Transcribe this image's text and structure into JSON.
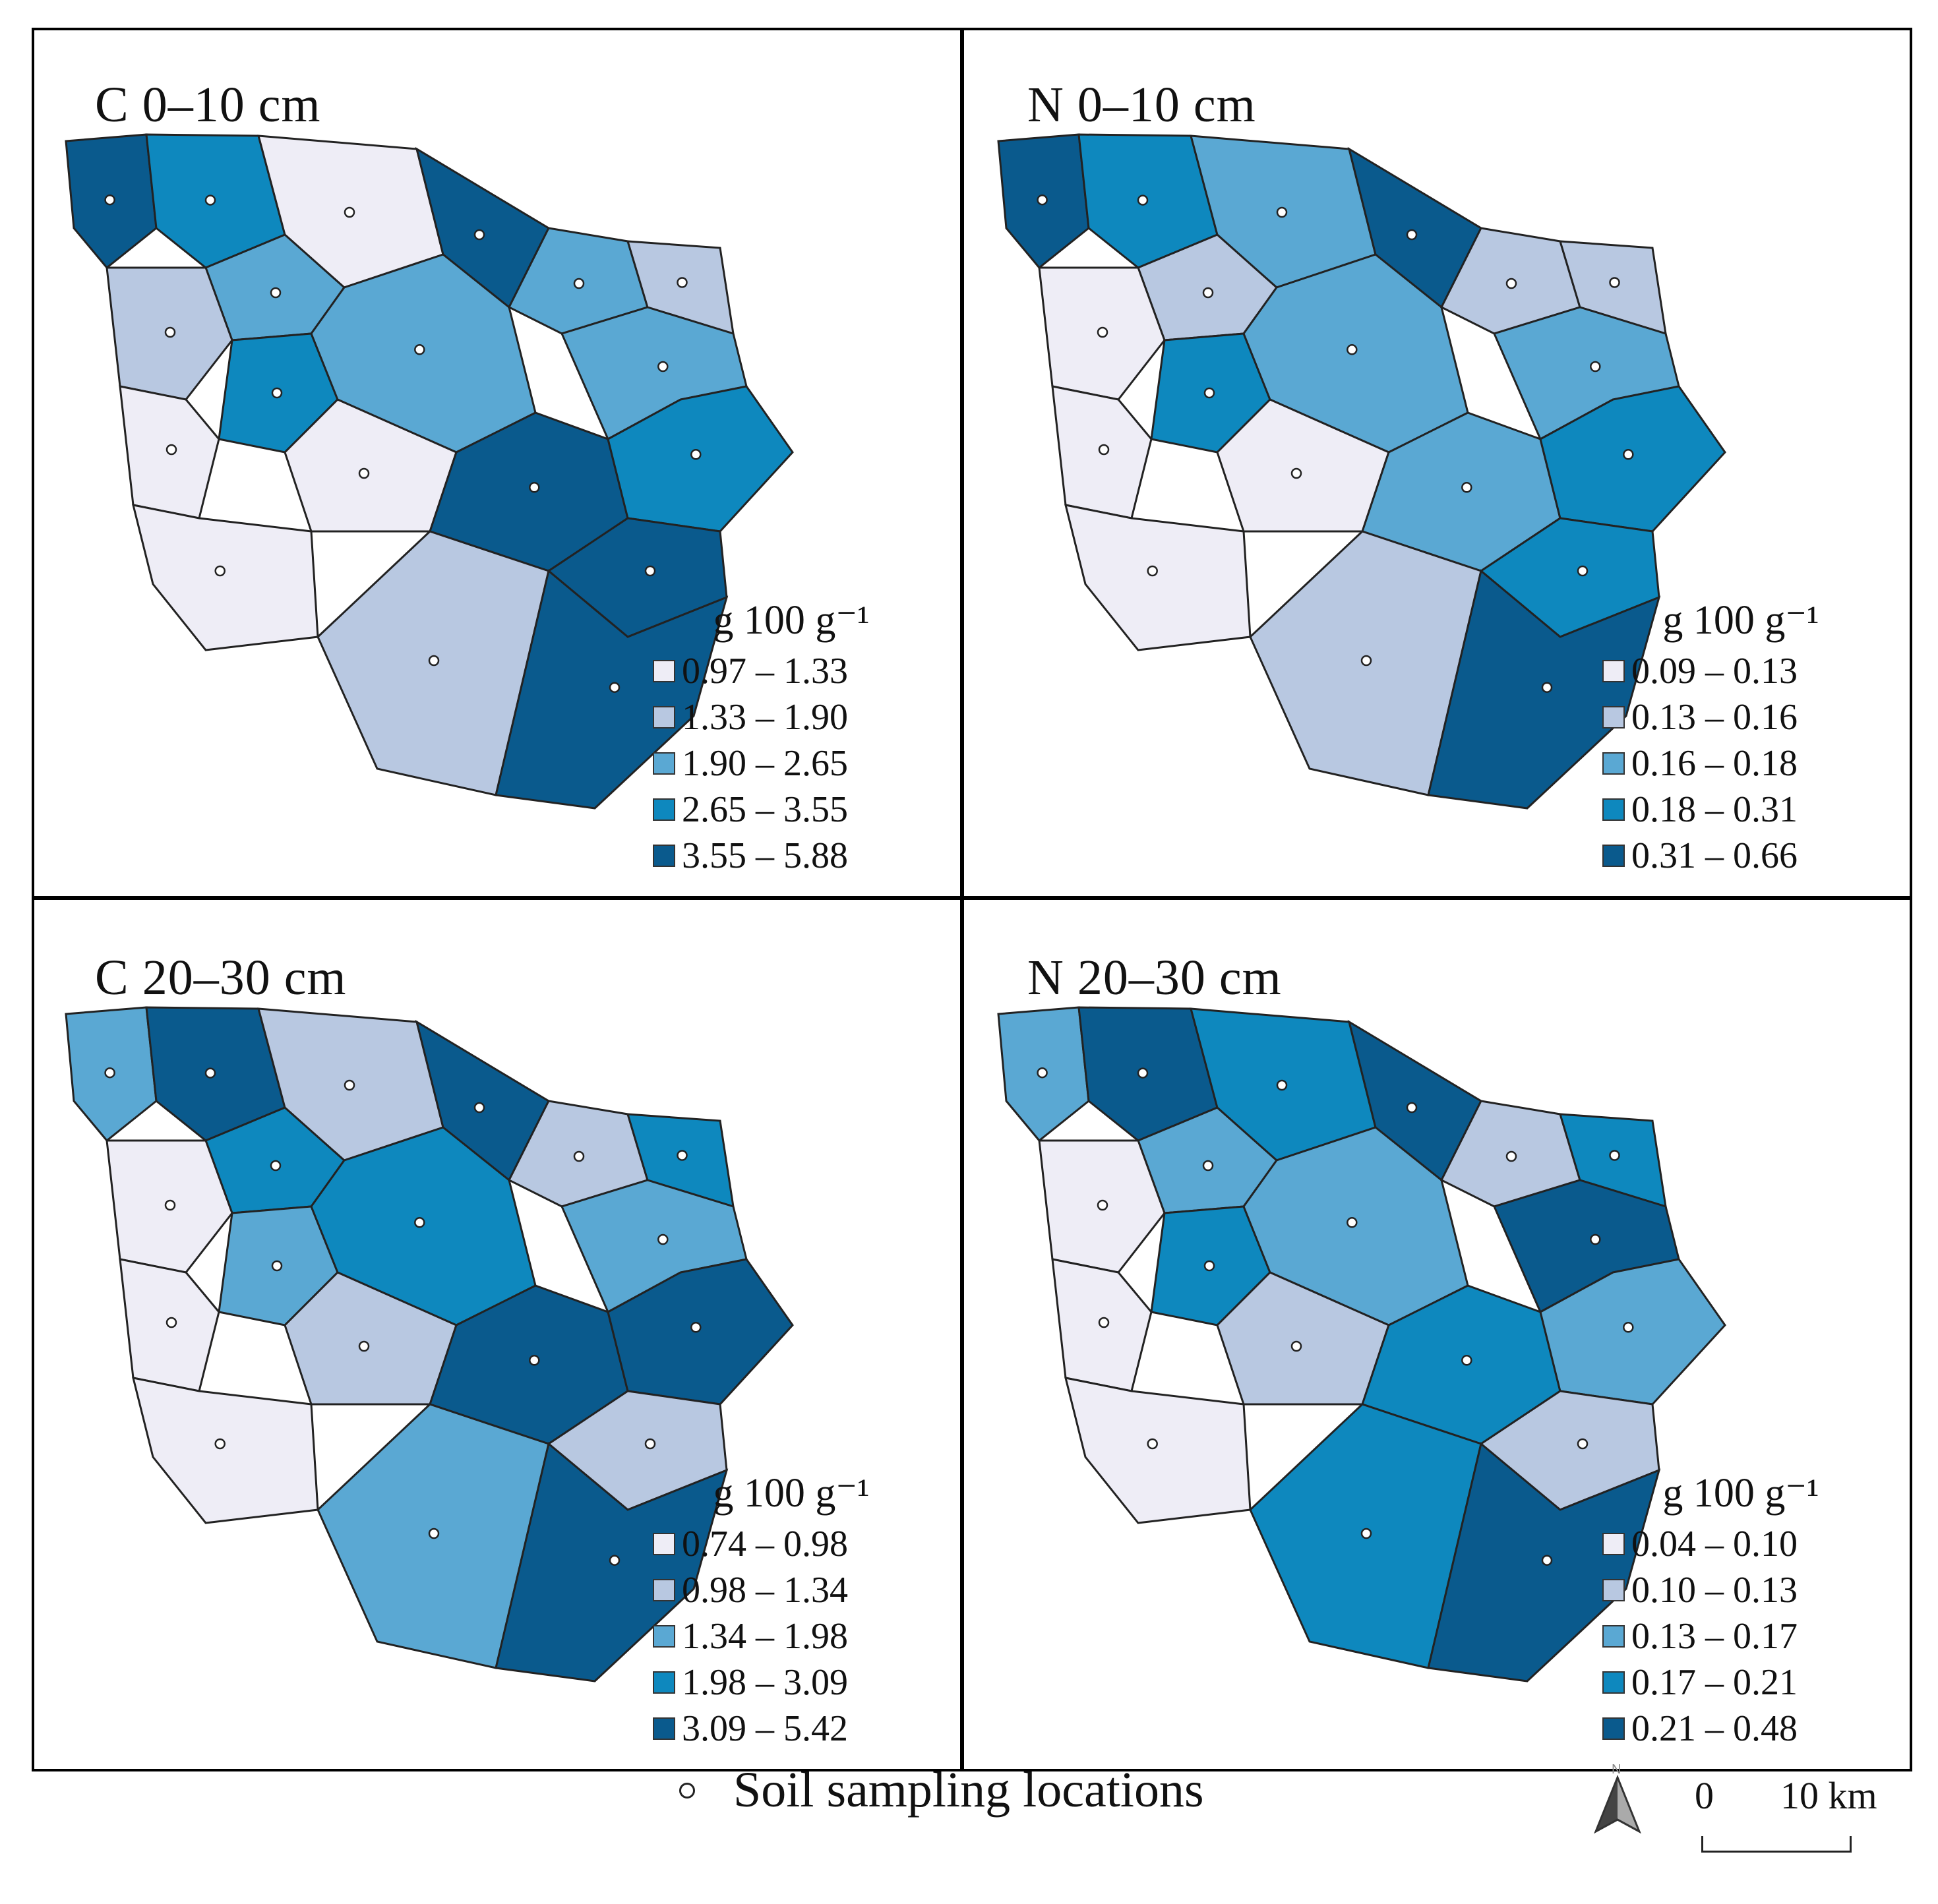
{
  "colors": {
    "c1": "#eeedf6",
    "c2": "#b8c8e1",
    "c3": "#5aa8d3",
    "c4": "#0e88be",
    "c5": "#0a5a8d",
    "border": "#222222"
  },
  "panels": [
    {
      "title": "C 0–10 cm",
      "unit": "g 100 g⁻¹",
      "classes": [
        "0.97 – 1.33",
        "1.33 – 1.90",
        "1.90 – 2.65",
        "2.65 – 3.55",
        "3.55 – 5.88"
      ],
      "cells": [
        5,
        4,
        1,
        3,
        5,
        2,
        4,
        3,
        3,
        1,
        5,
        2,
        3,
        1,
        4,
        5,
        1,
        2,
        5
      ]
    },
    {
      "title": "N 0–10 cm",
      "unit": "g 100 g⁻¹",
      "classes": [
        "0.09 – 0.13",
        "0.13 – 0.16",
        "0.16 – 0.18",
        "0.18 – 0.31",
        "0.31 – 0.66"
      ],
      "cells": [
        5,
        4,
        3,
        2,
        5,
        1,
        4,
        3,
        2,
        1,
        3,
        2,
        3,
        1,
        4,
        4,
        1,
        2,
        5
      ]
    },
    {
      "title": "C 20–30 cm",
      "unit": "g 100 g⁻¹",
      "classes": [
        "0.74 – 0.98",
        "0.98 – 1.34",
        "1.34 – 1.98",
        "1.98 – 3.09",
        "3.09 – 5.42"
      ],
      "cells": [
        3,
        5,
        2,
        4,
        5,
        1,
        3,
        4,
        2,
        2,
        5,
        4,
        3,
        1,
        5,
        2,
        1,
        3,
        5
      ]
    },
    {
      "title": "N 20–30 cm",
      "unit": "g 100 g⁻¹",
      "classes": [
        "0.04 – 0.10",
        "0.10 – 0.13",
        "0.13 – 0.17",
        "0.17 – 0.21",
        "0.21 – 0.48"
      ],
      "cells": [
        3,
        5,
        4,
        3,
        5,
        1,
        4,
        3,
        2,
        2,
        4,
        4,
        5,
        1,
        3,
        2,
        1,
        4,
        5
      ]
    }
  ],
  "footer": {
    "sampling_label": "Soil sampling locations",
    "north_label": "N",
    "scale_zero": "0",
    "scale_ten": "10 km"
  }
}
